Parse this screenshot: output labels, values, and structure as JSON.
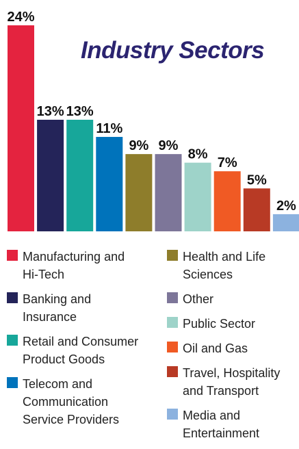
{
  "chart_data": {
    "type": "bar",
    "title": "Industry Sectors",
    "categories": [
      "Manufacturing and Hi-Tech",
      "Banking and Insurance",
      "Retail and Consumer Product Goods",
      "Telecom and Communication Service Providers",
      "Health and Life Sciences",
      "Other",
      "Public Sector",
      "Oil and Gas",
      "Travel, Hospitality and Transport",
      "Media and Entertainment"
    ],
    "values": [
      24,
      13,
      13,
      11,
      9,
      9,
      8,
      7,
      5,
      2
    ],
    "value_labels": [
      "24%",
      "13%",
      "13%",
      "11%",
      "9%",
      "9%",
      "8%",
      "7%",
      "5%",
      "2%"
    ],
    "colors": [
      "#e4233f",
      "#242459",
      "#17a79a",
      "#0073bb",
      "#8e7d2b",
      "#7d7699",
      "#9ed3c9",
      "#f05a24",
      "#b83a25",
      "#8cb2df"
    ],
    "ylim": [
      0,
      24
    ],
    "legend": "bottom",
    "grid": false
  },
  "legend": {
    "col1": [
      {
        "lines": [
          "Manufacturing and",
          "Hi-Tech"
        ],
        "color": "#e4233f"
      },
      {
        "lines": [
          "Banking and",
          "Insurance"
        ],
        "color": "#242459"
      },
      {
        "lines": [
          "Retail and Consumer",
          "Product Goods"
        ],
        "color": "#17a79a"
      },
      {
        "lines": [
          "Telecom and",
          "Communication",
          "Service Providers"
        ],
        "color": "#0073bb"
      }
    ],
    "col2": [
      {
        "lines": [
          "Health and Life",
          "Sciences"
        ],
        "color": "#8e7d2b"
      },
      {
        "lines": [
          "Other"
        ],
        "color": "#7d7699"
      },
      {
        "lines": [
          "Public Sector"
        ],
        "color": "#9ed3c9"
      },
      {
        "lines": [
          "Oil and Gas"
        ],
        "color": "#f05a24"
      },
      {
        "lines": [
          "Travel, Hospitality",
          "and Transport"
        ],
        "color": "#b83a25"
      },
      {
        "lines": [
          "Media and",
          "Entertainment"
        ],
        "color": "#8cb2df"
      }
    ]
  }
}
